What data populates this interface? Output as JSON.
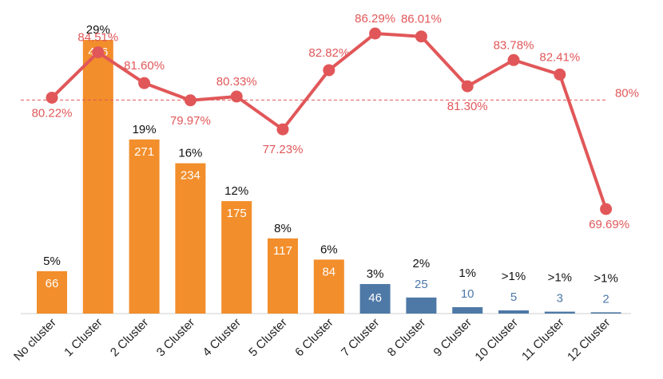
{
  "chart_data": {
    "type": "bar",
    "categories": [
      "No cluster",
      "1 Cluster",
      "2 Cluster",
      "3 Cluster",
      "4 Cluster",
      "5 Cluster",
      "6 Cluster",
      "7 Cluster",
      "8 Cluster",
      "9 Cluster",
      "10 Cluster",
      "11 Cluster",
      "12 Cluster"
    ],
    "bar_series": {
      "values": [
        66,
        426,
        271,
        234,
        175,
        117,
        84,
        46,
        25,
        10,
        5,
        3,
        2
      ],
      "value_labels": [
        "66",
        "426",
        "271",
        "234",
        "175",
        "117",
        "84",
        "46",
        "25",
        "10",
        "5",
        "3",
        "2"
      ],
      "percent_labels": [
        "5%",
        "29%",
        "19%",
        "16%",
        "12%",
        "8%",
        "6%",
        "3%",
        "2%",
        "1%",
        ">1%",
        ">1%",
        ">1%"
      ],
      "colors": [
        "#f28e2b",
        "#f28e2b",
        "#f28e2b",
        "#f28e2b",
        "#f28e2b",
        "#f28e2b",
        "#f28e2b",
        "#4e79a7",
        "#4e79a7",
        "#4e79a7",
        "#4e79a7",
        "#4e79a7",
        "#4e79a7"
      ]
    },
    "line_series": {
      "values": [
        80.22,
        84.51,
        81.6,
        79.97,
        80.33,
        77.23,
        82.82,
        86.29,
        86.01,
        81.3,
        83.78,
        82.41,
        69.69
      ],
      "labels": [
        "80.22%",
        "84.51%",
        "81.60%",
        "79.97%",
        "80.33%",
        "77.23%",
        "82.82%",
        "86.29%",
        "86.01%",
        "81.30%",
        "83.78%",
        "82.41%",
        "69.69%"
      ],
      "color": "#e15759"
    },
    "reference_line": {
      "value": 80,
      "label": "80%",
      "style": "dashed"
    },
    "bar_axis_range": [
      0,
      426
    ],
    "line_axis_range": [
      69.69,
      86.29
    ],
    "grid": false,
    "legend": "none"
  }
}
